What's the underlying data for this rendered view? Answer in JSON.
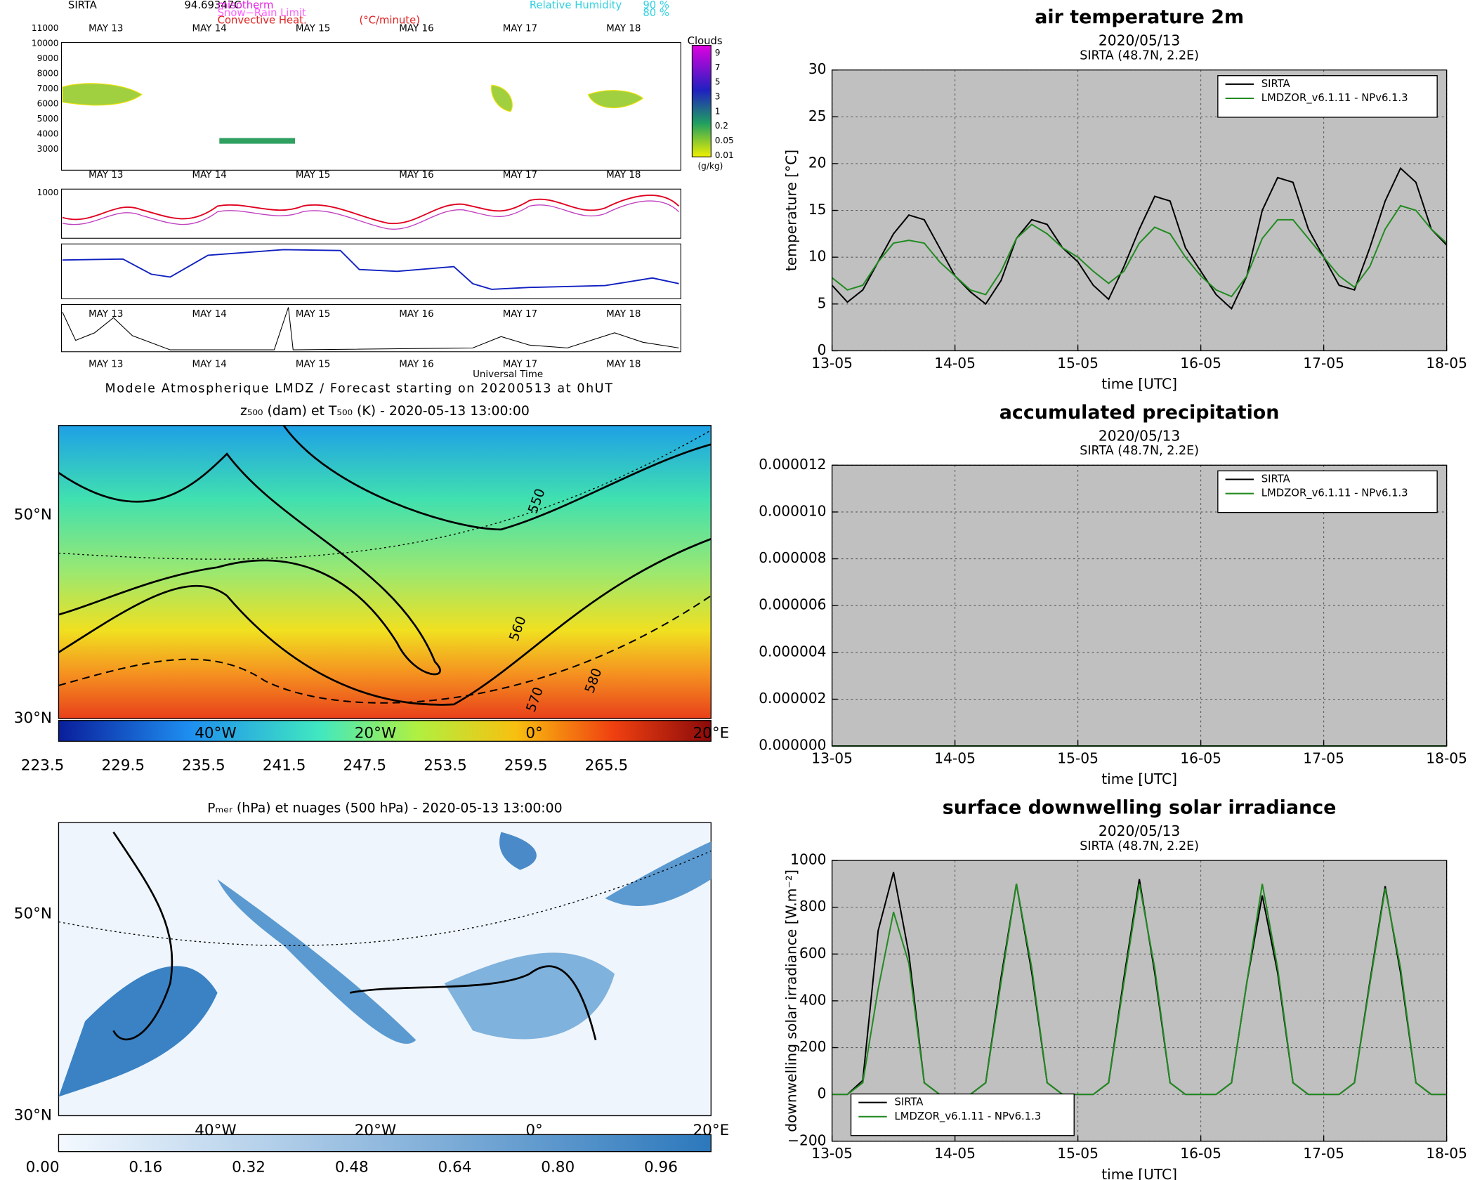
{
  "chart_data": [
    {
      "type": "line",
      "title": "air temperature 2m",
      "subtitle": "2020/05/13",
      "station": "SIRTA (48.7N, 2.2E)",
      "ylabel": "temperature [°C]",
      "xlabel": "time [UTC]",
      "x": [
        0,
        3,
        6,
        9,
        12,
        15,
        18,
        21,
        24,
        27,
        30,
        33,
        36,
        39,
        42,
        45,
        48,
        51,
        54,
        57,
        60,
        63,
        66,
        69,
        72,
        75,
        78,
        81,
        84,
        87,
        90,
        93,
        96,
        99,
        102,
        105,
        108,
        111,
        114,
        117,
        120
      ],
      "series": [
        {
          "name": "SIRTA",
          "color": "#000000",
          "values": [
            7,
            5.2,
            6.5,
            9.5,
            12.5,
            14.5,
            14,
            11,
            8,
            6.3,
            5,
            7.5,
            12,
            14,
            13.5,
            11,
            9.5,
            7,
            5.5,
            9,
            13,
            16.5,
            16,
            11,
            8.5,
            6,
            4.5,
            8,
            15,
            18.5,
            18,
            13,
            10,
            7,
            6.5,
            11,
            16,
            19.5,
            18,
            13,
            11.3
          ]
        },
        {
          "name": "LMDZOR_v6.1.11 - NPv6.1.3",
          "color": "#228b22",
          "values": [
            7.8,
            6.5,
            7,
            9.5,
            11.5,
            11.8,
            11.5,
            9.5,
            8,
            6.5,
            6,
            8.5,
            12,
            13.5,
            12.5,
            11,
            10,
            8.5,
            7.2,
            8.5,
            11.5,
            13.2,
            12.5,
            10,
            8,
            6.5,
            5.8,
            8,
            12,
            14,
            14,
            12,
            10,
            8,
            6.8,
            9,
            13,
            15.5,
            15,
            13,
            11.5
          ]
        }
      ],
      "xlim": [
        0,
        120
      ],
      "xticks": [
        {
          "value": 0,
          "label": "13-05"
        },
        {
          "value": 24,
          "label": "14-05"
        },
        {
          "value": 48,
          "label": "15-05"
        },
        {
          "value": 72,
          "label": "16-05"
        },
        {
          "value": 96,
          "label": "17-05"
        },
        {
          "value": 120,
          "label": "18-05"
        }
      ],
      "ylim": [
        0,
        30
      ],
      "yticks": [
        0,
        5,
        10,
        15,
        20,
        25,
        30
      ],
      "grid": true,
      "legend": "upper right"
    },
    {
      "type": "line",
      "title": "accumulated precipitation",
      "subtitle": "2020/05/13",
      "station": "SIRTA (48.7N, 2.2E)",
      "xlabel": "time [UTC]",
      "x": [
        0,
        3,
        6,
        9,
        12,
        15,
        18,
        21,
        24,
        27,
        30,
        33,
        36,
        39,
        42,
        45,
        48,
        51,
        54,
        57,
        60,
        63,
        66,
        69,
        72,
        75,
        78,
        81,
        84,
        87,
        90,
        93,
        96,
        99,
        102,
        105,
        108,
        111,
        114,
        117,
        120
      ],
      "series": [
        {
          "name": "SIRTA",
          "color": "#000000",
          "values": [
            0,
            0,
            0,
            0,
            0,
            0,
            0,
            0,
            0,
            0,
            0,
            0,
            0,
            0,
            0,
            0,
            0,
            0,
            0,
            0,
            0,
            0,
            0,
            0,
            0,
            0,
            0,
            0,
            0,
            0,
            0,
            0,
            0,
            0,
            0,
            0,
            0,
            0,
            0,
            0,
            0
          ]
        },
        {
          "name": "LMDZOR_v6.1.11 - NPv6.1.3",
          "color": "#228b22",
          "values": [
            0,
            0,
            0,
            0,
            0,
            0,
            0,
            0,
            0,
            0,
            0,
            0,
            0,
            0,
            0,
            0,
            0,
            0,
            0,
            0,
            0,
            0,
            0,
            0,
            0,
            0,
            0,
            0,
            0,
            0,
            0,
            0,
            0,
            0,
            0,
            0,
            0,
            0,
            0,
            0,
            0
          ]
        }
      ],
      "xlim": [
        0,
        120
      ],
      "xticks": [
        {
          "value": 0,
          "label": "13-05"
        },
        {
          "value": 24,
          "label": "14-05"
        },
        {
          "value": 48,
          "label": "15-05"
        },
        {
          "value": 72,
          "label": "16-05"
        },
        {
          "value": 96,
          "label": "17-05"
        },
        {
          "value": 120,
          "label": "18-05"
        }
      ],
      "ylim": [
        0,
        1.2e-05
      ],
      "yticks": [
        {
          "value": 0,
          "label": "0.000000"
        },
        {
          "value": 2e-06,
          "label": "0.000002"
        },
        {
          "value": 4e-06,
          "label": "0.000004"
        },
        {
          "value": 6e-06,
          "label": "0.000006"
        },
        {
          "value": 8e-06,
          "label": "0.000008"
        },
        {
          "value": 1e-05,
          "label": "0.000010"
        },
        {
          "value": 1.2e-05,
          "label": "0.000012"
        }
      ],
      "grid": true,
      "legend": "upper right"
    },
    {
      "type": "line",
      "title": "surface downwelling solar irradiance",
      "subtitle": "2020/05/13",
      "station": "SIRTA (48.7N, 2.2E)",
      "ylabel": "downwelling solar irradiance [W.m⁻²]",
      "xlabel": "time [UTC]",
      "x": [
        0,
        3,
        6,
        9,
        12,
        15,
        18,
        21,
        24,
        27,
        30,
        33,
        36,
        39,
        42,
        45,
        48,
        51,
        54,
        57,
        60,
        63,
        66,
        69,
        72,
        75,
        78,
        81,
        84,
        87,
        90,
        93,
        96,
        99,
        102,
        105,
        108,
        111,
        114,
        117,
        120
      ],
      "series": [
        {
          "name": "SIRTA",
          "color": "#000000",
          "values": [
            0,
            0,
            60,
            700,
            950,
            600,
            50,
            0,
            0,
            0,
            50,
            500,
            900,
            520,
            50,
            0,
            0,
            0,
            50,
            500,
            920,
            520,
            50,
            0,
            0,
            0,
            50,
            480,
            850,
            520,
            50,
            0,
            0,
            0,
            50,
            480,
            890,
            520,
            50,
            0,
            0
          ]
        },
        {
          "name": "LMDZOR_v6.1.11 - NPv6.1.3",
          "color": "#228b22",
          "values": [
            0,
            0,
            50,
            450,
            780,
            560,
            50,
            0,
            0,
            0,
            50,
            480,
            900,
            540,
            50,
            0,
            0,
            0,
            50,
            480,
            900,
            540,
            50,
            0,
            0,
            0,
            50,
            480,
            900,
            540,
            50,
            0,
            0,
            0,
            50,
            470,
            880,
            540,
            50,
            0,
            0
          ]
        }
      ],
      "xlim": [
        0,
        120
      ],
      "xticks": [
        {
          "value": 0,
          "label": "13-05"
        },
        {
          "value": 24,
          "label": "14-05"
        },
        {
          "value": 48,
          "label": "15-05"
        },
        {
          "value": 72,
          "label": "16-05"
        },
        {
          "value": 96,
          "label": "17-05"
        },
        {
          "value": 120,
          "label": "18-05"
        }
      ],
      "ylim": [
        -200,
        1000
      ],
      "yticks": [
        {
          "value": -200,
          "label": "−200"
        },
        0,
        200,
        400,
        600,
        800,
        1000
      ],
      "grid": true,
      "legend": "lower left"
    }
  ],
  "meteogram": {
    "station": "SIRTA",
    "elevation": "94.69347C",
    "legend": [
      "misotherm",
      "Snow−Rain Limit",
      "Convective Heat.",
      "(°C/minute)",
      "Relative Humidity",
      "90 %",
      "80 %"
    ],
    "days": [
      "MAY 13",
      "MAY 14",
      "MAY 15",
      "MAY 16",
      "MAY 17",
      "MAY 18"
    ],
    "height_ticks": [
      "11000",
      "10000",
      "9000",
      "8000",
      "7000",
      "6000",
      "5000",
      "4000",
      "3000",
      "1000"
    ],
    "clouds_title": "Clouds",
    "cloud_levels": [
      "9",
      "7",
      "5",
      "3",
      "1",
      "0.2",
      "0.05",
      "0.01"
    ],
    "cloud_unit": "(g/kg)",
    "time_label": "Universal Time",
    "footer": "Modele Atmospherique LMDZ / Forecast starting on 20200513 at 0hUT"
  },
  "maps": [
    {
      "title": "z₅₀₀ (dam) et T₅₀₀ (K) - 2020-05-13 13:00:00",
      "lat_labels": [
        "50°N",
        "30°N"
      ],
      "lon_labels": [
        "40°W",
        "20°W",
        "0°",
        "20°E"
      ],
      "colorbar": [
        "223.5",
        "229.5",
        "235.5",
        "241.5",
        "247.5",
        "253.5",
        "259.5",
        "265.5"
      ],
      "contours": [
        "550",
        "560",
        "570",
        "580"
      ]
    },
    {
      "title": "Pₘₑᵣ (hPa) et nuages (500 hPa) - 2020-05-13 13:00:00",
      "lat_labels": [
        "50°N",
        "30°N"
      ],
      "lon_labels": [
        "40°W",
        "20°W",
        "0°",
        "20°E"
      ],
      "colorbar": [
        "0.00",
        "0.16",
        "0.32",
        "0.48",
        "0.64",
        "0.80",
        "0.96"
      ]
    }
  ]
}
